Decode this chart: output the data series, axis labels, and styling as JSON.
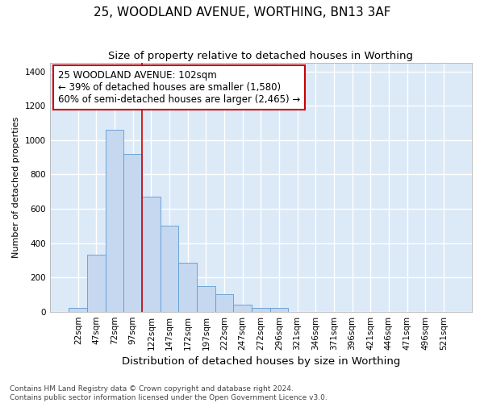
{
  "title": "25, WOODLAND AVENUE, WORTHING, BN13 3AF",
  "subtitle": "Size of property relative to detached houses in Worthing",
  "xlabel": "Distribution of detached houses by size in Worthing",
  "ylabel": "Number of detached properties",
  "categories": [
    "22sqm",
    "47sqm",
    "72sqm",
    "97sqm",
    "122sqm",
    "147sqm",
    "172sqm",
    "197sqm",
    "222sqm",
    "247sqm",
    "272sqm",
    "296sqm",
    "321sqm",
    "346sqm",
    "371sqm",
    "396sqm",
    "421sqm",
    "446sqm",
    "471sqm",
    "496sqm",
    "521sqm"
  ],
  "values": [
    20,
    330,
    1060,
    920,
    670,
    500,
    285,
    150,
    100,
    40,
    20,
    20,
    0,
    0,
    0,
    0,
    0,
    0,
    0,
    0,
    0
  ],
  "bar_color": "#c5d8f0",
  "bar_edge_color": "#5b9bd5",
  "background_color": "#dce9f7",
  "grid_color": "#ffffff",
  "vline_x": 3.5,
  "vline_color": "#cc0000",
  "annotation_text": "25 WOODLAND AVENUE: 102sqm\n← 39% of detached houses are smaller (1,580)\n60% of semi-detached houses are larger (2,465) →",
  "annotation_box_facecolor": "#ffffff",
  "annotation_box_edgecolor": "#cc0000",
  "ylim": [
    0,
    1450
  ],
  "yticks": [
    0,
    200,
    400,
    600,
    800,
    1000,
    1200,
    1400
  ],
  "title_fontsize": 11,
  "subtitle_fontsize": 9.5,
  "xlabel_fontsize": 9.5,
  "ylabel_fontsize": 8,
  "tick_fontsize": 7.5,
  "annotation_fontsize": 8.5,
  "footer_fontsize": 6.5,
  "footer": "Contains HM Land Registry data © Crown copyright and database right 2024.\nContains public sector information licensed under the Open Government Licence v3.0."
}
